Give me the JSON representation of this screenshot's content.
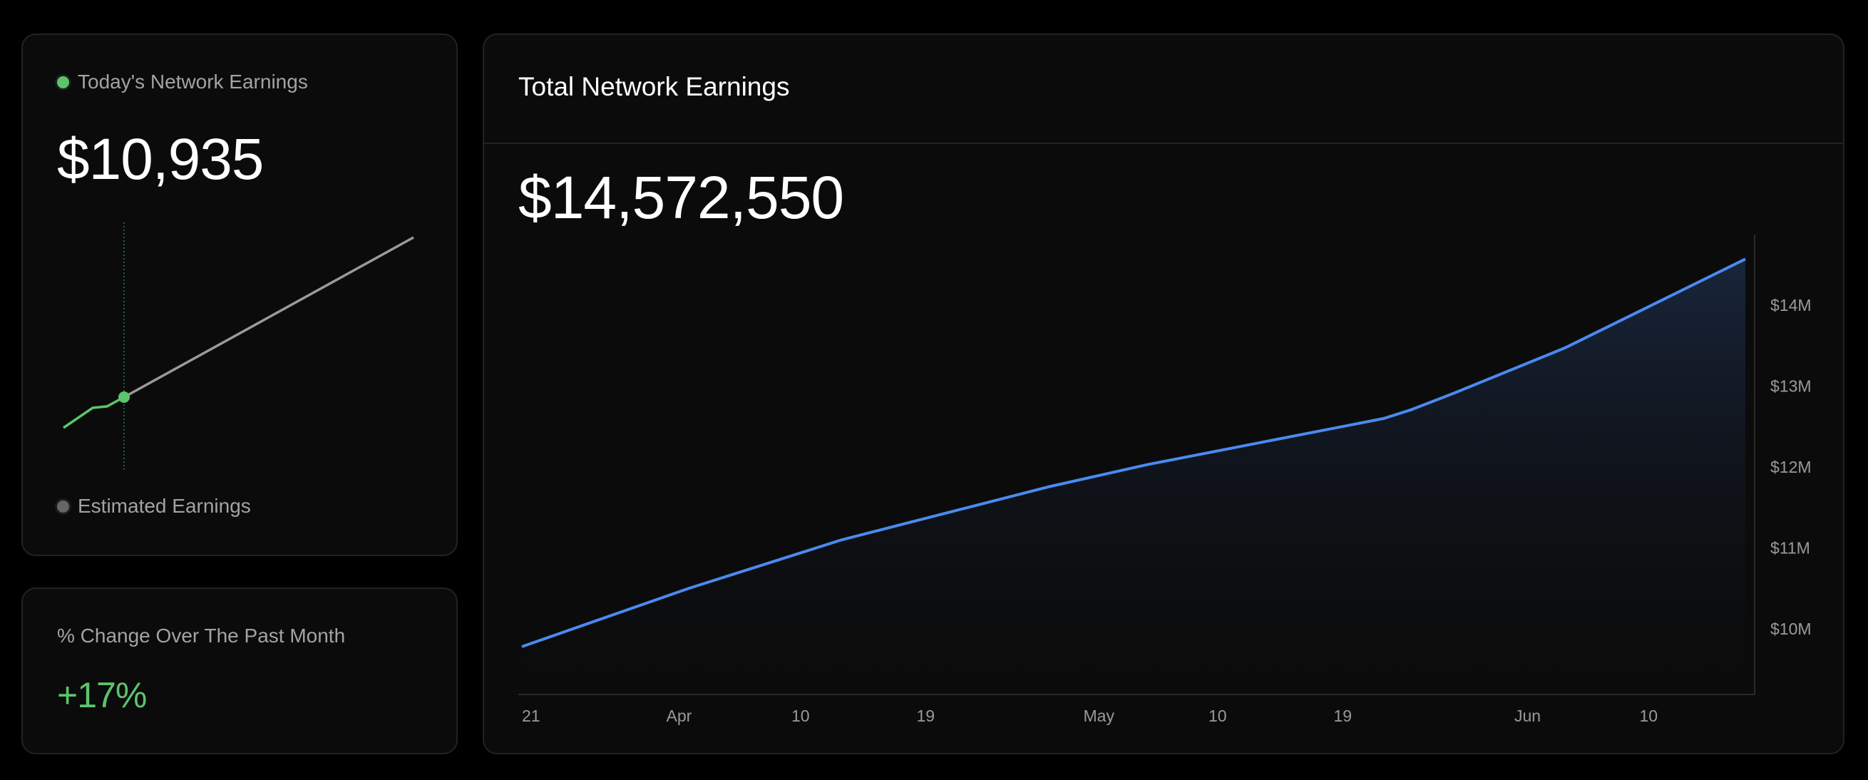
{
  "today_card": {
    "legend_actual": "Today's Network Earnings",
    "value": "$10,935",
    "legend_estimated": "Estimated Earnings",
    "colors": {
      "actual": "#5cc46b",
      "estimated": "#9a9a9a"
    }
  },
  "change_card": {
    "label": "% Change Over The Past Month",
    "value": "+17%",
    "color": "#5cc46b"
  },
  "total_card": {
    "title": "Total Network Earnings",
    "value": "$14,572,550"
  },
  "chart_data": {
    "type": "area",
    "title": "Total Network Earnings",
    "line_color": "#4a8af0",
    "ylim": [
      9.3,
      15.0
    ],
    "yticks": [
      {
        "value": 10,
        "label": "$10M"
      },
      {
        "value": 11,
        "label": "$11M"
      },
      {
        "value": 12,
        "label": "$12M"
      },
      {
        "value": 13,
        "label": "$13M"
      },
      {
        "value": 14,
        "label": "$14M"
      }
    ],
    "xticks": [
      {
        "date": "03-21",
        "label": "21"
      },
      {
        "date": "04-01",
        "label": "Apr"
      },
      {
        "date": "04-10",
        "label": "10"
      },
      {
        "date": "04-19",
        "label": "19"
      },
      {
        "date": "05-01",
        "label": "May"
      },
      {
        "date": "05-10",
        "label": "10"
      },
      {
        "date": "05-19",
        "label": "19"
      },
      {
        "date": "06-01",
        "label": "Jun"
      },
      {
        "date": "06-10",
        "label": "10"
      }
    ],
    "series": [
      {
        "unit": "$M",
        "points": [
          {
            "date": "03-21",
            "value": 9.78
          },
          {
            "date": "04-02",
            "value": 10.5
          },
          {
            "date": "04-13",
            "value": 11.1
          },
          {
            "date": "04-28",
            "value": 11.76
          },
          {
            "date": "05-05",
            "value": 12.03
          },
          {
            "date": "05-22",
            "value": 12.6
          },
          {
            "date": "05-24",
            "value": 12.71
          },
          {
            "date": "05-27",
            "value": 12.91
          },
          {
            "date": "06-04",
            "value": 13.47
          },
          {
            "date": "06-17",
            "value": 14.57
          }
        ]
      }
    ]
  }
}
